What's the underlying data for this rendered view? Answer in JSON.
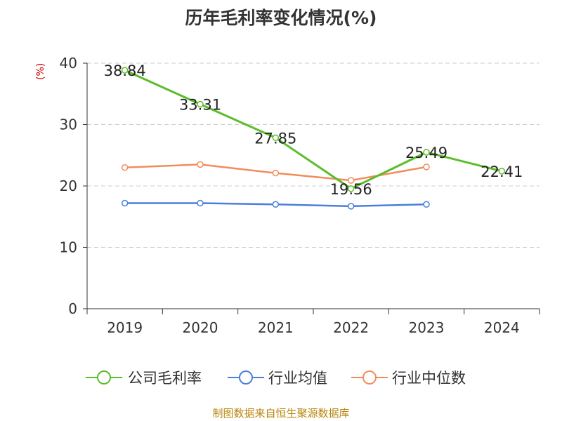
{
  "title": "历年毛利率变化情况(%)",
  "source": "制图数据来自恒生聚源数据库",
  "colors": {
    "company": "#5bbd2b",
    "industry_avg": "#4a7fdb",
    "industry_median": "#f28c5c",
    "grid": "#cccccc",
    "axis": "#333333"
  },
  "chart_data": {
    "type": "line",
    "title": "历年毛利率变化情况(%)",
    "ylabel": "(%)",
    "xlabel": "",
    "categories": [
      "2019",
      "2020",
      "2021",
      "2022",
      "2023",
      "2024"
    ],
    "ylim": [
      0,
      40
    ],
    "yticks": [
      0,
      10,
      20,
      30,
      40
    ],
    "grid": true,
    "legend_position": "bottom",
    "series": [
      {
        "name": "公司毛利率",
        "values": [
          38.84,
          33.31,
          27.85,
          19.56,
          25.49,
          22.41
        ],
        "labels": [
          "38.84",
          "33.31",
          "27.85",
          "19.56",
          "25.49",
          "22.41"
        ]
      },
      {
        "name": "行业均值",
        "values": [
          17.2,
          17.2,
          17.0,
          16.7,
          17.0,
          null
        ]
      },
      {
        "name": "行业中位数",
        "values": [
          23.0,
          23.5,
          22.1,
          20.9,
          23.1,
          null
        ]
      }
    ]
  }
}
